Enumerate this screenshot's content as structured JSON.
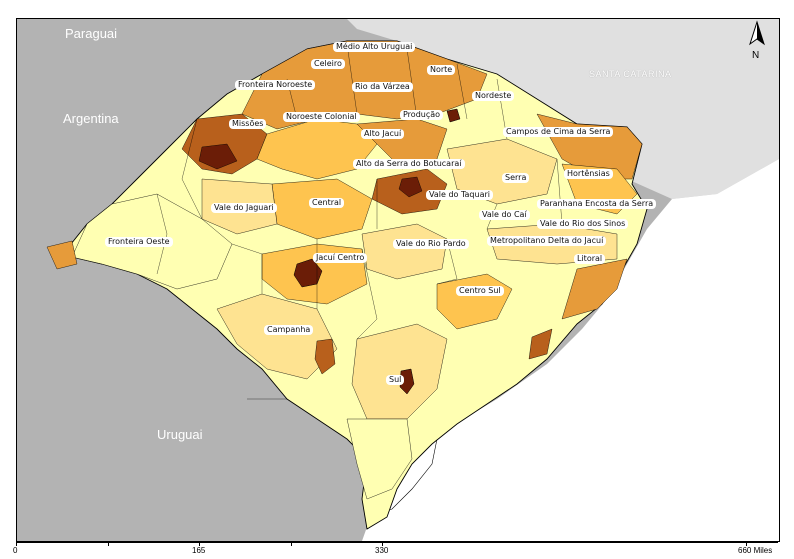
{
  "countries": {
    "paraguay": "Paraguai",
    "argentina": "Argentina",
    "uruguay": "Uruguai"
  },
  "neighbor_state": "SANTA CATARINA",
  "north_arrow_label": "N",
  "regions": [
    "Médio Alto Uruguai",
    "Celeiro",
    "Fronteira Noroeste",
    "Norte",
    "Rio da Várzea",
    "Nordeste",
    "Missões",
    "Noroeste Colonial",
    "Produção",
    "Alto Jacuí",
    "Campos de Cima da Serra",
    "Alto da Serra do Botucaraí",
    "Serra",
    "Hortênsias",
    "Vale do Taquari",
    "Vale do Jaguari",
    "Central",
    "Paranhana Encosta da Serra",
    "Vale do Caí",
    "Vale do Rio dos Sinos",
    "Fronteira Oeste",
    "Vale do Rio Pardo",
    "Metropolitano Delta do Jacuí",
    "Jacuí Centro",
    "Litoral",
    "Centro Sul",
    "Campanha",
    "Sul"
  ],
  "scale": {
    "ticks": [
      "0",
      "165",
      "330",
      "660 Miles"
    ]
  },
  "colors": {
    "neighbor_gray": "#b3b3b3",
    "ocean_light": "#e0e0e0",
    "class_1": "#ffffb2",
    "class_2": "#fee391",
    "class_3": "#fec44f",
    "class_4": "#e69b3a",
    "class_5": "#b8601c",
    "class_6": "#6b1d07"
  }
}
